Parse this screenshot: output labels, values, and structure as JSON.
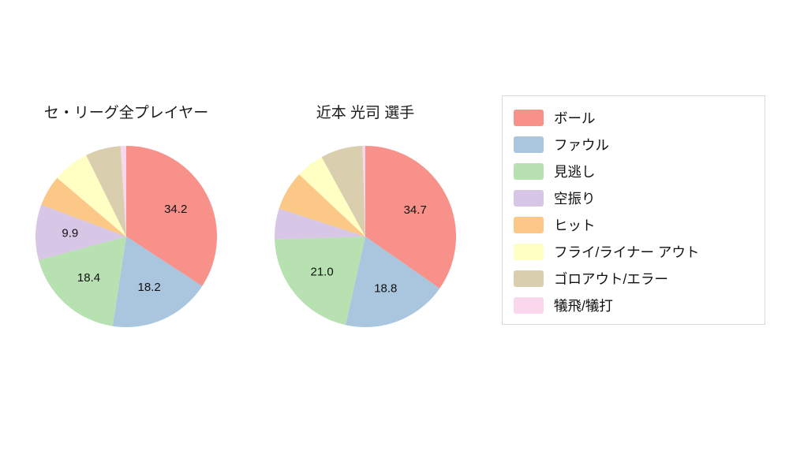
{
  "palette": [
    "#f7918a",
    "#a9c6de",
    "#b7e1b1",
    "#d7c6e6",
    "#fbc888",
    "#ffffc4",
    "#d9cfae",
    "#fbd7ee"
  ],
  "legend": {
    "items": [
      {
        "label": "ボール"
      },
      {
        "label": "ファウル"
      },
      {
        "label": "見逃し"
      },
      {
        "label": "空振り"
      },
      {
        "label": "ヒット"
      },
      {
        "label": "フライ/ライナー アウト"
      },
      {
        "label": "ゴロアウト/エラー"
      },
      {
        "label": "犠飛/犠打"
      }
    ]
  },
  "chart_data": [
    {
      "type": "pie",
      "title": "セ・リーグ全プレイヤー",
      "categories": [
        "ボール",
        "ファウル",
        "見逃し",
        "空振り",
        "ヒット",
        "フライ/ライナー アウト",
        "ゴロアウト/エラー",
        "犠飛/犠打"
      ],
      "values": [
        34.2,
        18.2,
        18.4,
        9.9,
        5.5,
        6.5,
        6.3,
        1.0
      ],
      "labeled_values": [
        "34.2",
        "18.2",
        "18.4",
        "9.9"
      ],
      "start_angle_deg": 90,
      "direction": "clockwise",
      "label_threshold_pct": 8,
      "legend_position": "right"
    },
    {
      "type": "pie",
      "title": "近本 光司  選手",
      "categories": [
        "ボール",
        "ファウル",
        "見逃し",
        "空振り",
        "ヒット",
        "フライ/ライナー アウト",
        "ゴロアウト/エラー",
        "犠飛/犠打"
      ],
      "values": [
        34.7,
        18.8,
        21.0,
        5.5,
        7.0,
        5.0,
        7.5,
        0.5
      ],
      "labeled_values": [
        "34.7",
        "18.8",
        "21.0"
      ],
      "start_angle_deg": 90,
      "direction": "clockwise",
      "label_threshold_pct": 8,
      "legend_position": "right"
    }
  ]
}
